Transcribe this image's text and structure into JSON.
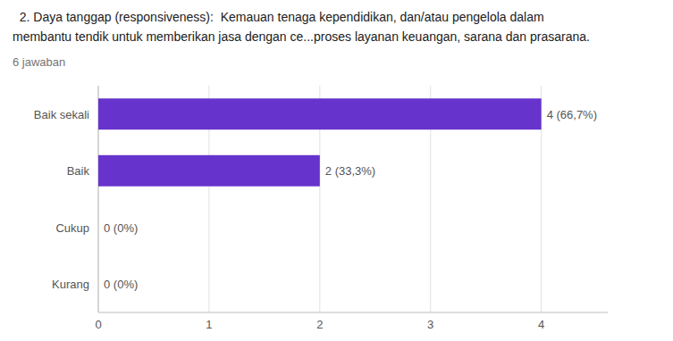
{
  "chart_data": {
    "type": "bar",
    "orientation": "horizontal",
    "title": "  2. Daya tanggap (responsiveness):  Kemauan tenaga kependidikan, dan/atau pengelola dalam\nmembantu tendik untuk memberikan jasa dengan ce...proses layanan keuangan, sarana dan prasarana.",
    "subtitle": "6 jawaban",
    "categories": [
      "Baik sekali",
      "Baik",
      "Cukup",
      "Kurang"
    ],
    "values": [
      4,
      2,
      0,
      0
    ],
    "value_labels": [
      "4 (66,7%)",
      "2 (33,3%)",
      "0 (0%)",
      "0 (0%)"
    ],
    "data_labels": true,
    "color": "#6633cc",
    "xlim": [
      0,
      4.6
    ],
    "xticks": [
      0,
      1,
      2,
      3,
      4
    ],
    "grid": true
  }
}
